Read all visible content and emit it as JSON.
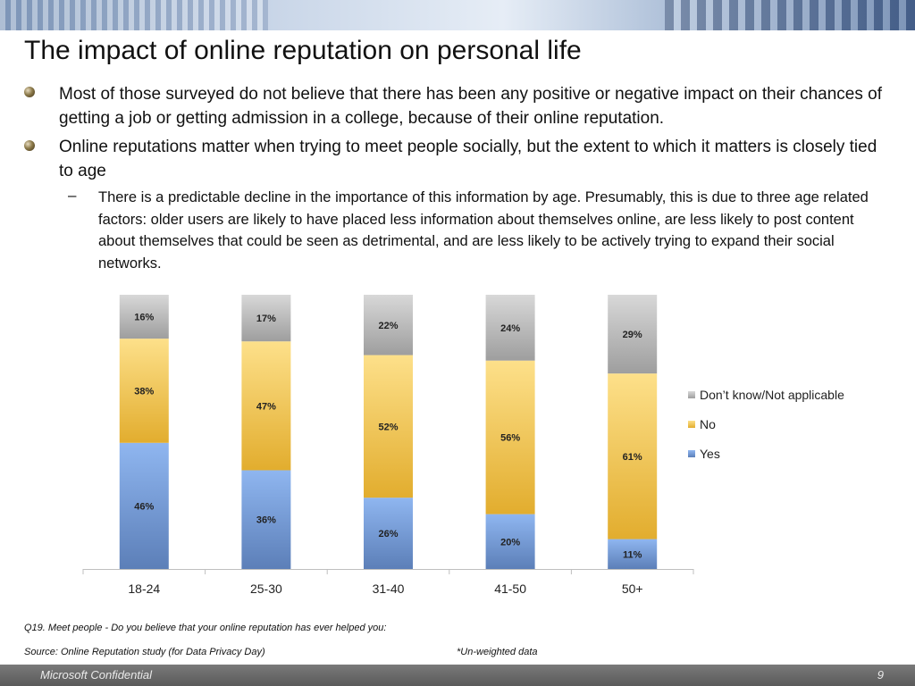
{
  "slide": {
    "title": "The impact of online reputation on personal life",
    "bullets": [
      "Most of those surveyed do not believe that there has been any positive or negative impact on their chances of getting a job or getting admission in a college, because of their online reputation.",
      "Online reputations matter when trying to meet people socially, but the extent to which it matters is closely tied to age"
    ],
    "sub_bullet_marker": "–",
    "sub_bullet": "There is a predictable decline in the importance of this information by age. Presumably, this is due to three age related factors: older users are likely to have placed less information about themselves online, are less likely to post content about themselves that could be seen as detrimental, and are less likely to be actively trying to expand their social networks.",
    "question_note": "Q19. Meet people - Do you believe that your online reputation has ever helped you:",
    "source_note": "Source: Online Reputation study (for Data Privacy Day)",
    "weight_note": "*Un-weighted data",
    "footer_label": "Microsoft Confidential",
    "page_number": "9"
  },
  "chart_data": {
    "type": "bar",
    "stacked": true,
    "percent_stacked": true,
    "categories": [
      "18-24",
      "25-30",
      "31-40",
      "41-50",
      "50+"
    ],
    "series": [
      {
        "name": "Yes",
        "values": [
          46,
          36,
          26,
          20,
          11
        ],
        "color": "#7fa7e0"
      },
      {
        "name": "No",
        "values": [
          38,
          47,
          52,
          56,
          61
        ],
        "color": "#f3cf5d"
      },
      {
        "name": "Don’t know/Not applicable",
        "values": [
          16,
          17,
          22,
          24,
          29
        ],
        "color": "#bdbdbd"
      }
    ],
    "legend_order": [
      "Don’t know/Not applicable",
      "No",
      "Yes"
    ],
    "legend_position": "right",
    "data_label_suffix": "%",
    "ylim": [
      0,
      100
    ],
    "grid": false
  }
}
